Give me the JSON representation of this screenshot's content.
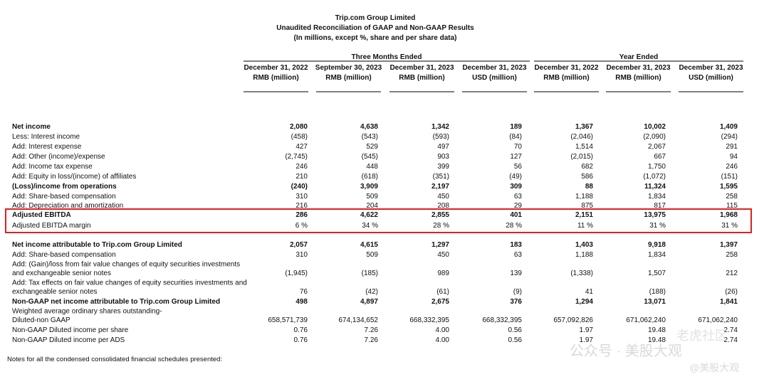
{
  "header": {
    "title": "Trip.com Group Limited",
    "subtitle": "Unaudited Reconciliation of  GAAP and Non-GAAP Results",
    "note": "(In millions, except %, share and per share data)"
  },
  "table": {
    "groups": [
      "Three Months Ended",
      "Year Ended"
    ],
    "columns": [
      [
        "December 31, 2022",
        "RMB (million)"
      ],
      [
        "September 30, 2023",
        "RMB (million)"
      ],
      [
        "December 31, 2023",
        "RMB (million)"
      ],
      [
        "December 31, 2023",
        "USD (million)"
      ],
      [
        "December 31, 2022",
        "RMB (million)"
      ],
      [
        "December 31, 2023",
        "RMB (million)"
      ],
      [
        "December 31, 2023",
        "USD (million)"
      ]
    ],
    "rows": [
      {
        "label": [
          "Net income"
        ],
        "bold": true,
        "values": [
          "2,080",
          "4,638",
          "1,342",
          "189",
          "1,367",
          "10,002",
          "1,409"
        ]
      },
      {
        "label": [
          "Less: Interest income"
        ],
        "bold": false,
        "values": [
          "(458)",
          "(543)",
          "(593)",
          "(84)",
          "(2,046)",
          "(2,090)",
          "(294)"
        ]
      },
      {
        "label": [
          "Add: Interest expense"
        ],
        "bold": false,
        "values": [
          "427",
          "529",
          "497",
          "70",
          "1,514",
          "2,067",
          "291"
        ]
      },
      {
        "label": [
          "Add: Other (income)/expense"
        ],
        "bold": false,
        "values": [
          "(2,745)",
          "(545)",
          "903",
          "127",
          "(2,015)",
          "667",
          "94"
        ]
      },
      {
        "label": [
          "Add: Income tax expense"
        ],
        "bold": false,
        "values": [
          "246",
          "448",
          "399",
          "56",
          "682",
          "1,750",
          "246"
        ]
      },
      {
        "label": [
          "Add: Equity in loss/(income) of affiliates"
        ],
        "bold": false,
        "values": [
          "210",
          "(618)",
          "(351)",
          "(49)",
          "586",
          "(1,072)",
          "(151)"
        ]
      },
      {
        "label": [
          "(Loss)/income from operations"
        ],
        "bold": true,
        "values": [
          "(240)",
          "3,909",
          "2,197",
          "309",
          "88",
          "11,324",
          "1,595"
        ]
      },
      {
        "label": [
          "Add: Share-based compensation"
        ],
        "bold": false,
        "values": [
          "310",
          "509",
          "450",
          "63",
          "1,188",
          "1,834",
          "258"
        ]
      },
      {
        "label": [
          "Add: Depreciation and amortization"
        ],
        "bold": false,
        "values": [
          "216",
          "204",
          "208",
          "29",
          "875",
          "817",
          "115"
        ]
      },
      {
        "label": [
          "Adjusted EBITDA"
        ],
        "bold": true,
        "values": [
          "286",
          "4,622",
          "2,855",
          "401",
          "2,151",
          "13,975",
          "1,968"
        ]
      },
      {
        "label": [
          "Adjusted EBITDA margin"
        ],
        "bold": false,
        "values": [
          "6 %",
          "34 %",
          "28 %",
          "28 %",
          "11 %",
          "31 %",
          "31 %"
        ]
      },
      {
        "label": [
          "Net income attributable to Trip.com Group Limited"
        ],
        "bold": true,
        "values": [
          "2,057",
          "4,615",
          "1,297",
          "183",
          "1,403",
          "9,918",
          "1,397"
        ]
      },
      {
        "label": [
          "Add: Share-based compensation"
        ],
        "bold": false,
        "values": [
          "310",
          "509",
          "450",
          "63",
          "1,188",
          "1,834",
          "258"
        ]
      },
      {
        "label": [
          "Add: (Gain)/loss from fair value changes of equity securities investments",
          "and exchangeable senior notes"
        ],
        "bold": false,
        "values": [
          "(1,945)",
          "(185)",
          "989",
          "139",
          "(1,338)",
          "1,507",
          "212"
        ]
      },
      {
        "label": [
          "Add: Tax effects on fair value changes of equity securities investments and",
          "exchangeable senior notes"
        ],
        "bold": false,
        "values": [
          "76",
          "(42)",
          "(61)",
          "(9)",
          "41",
          "(188)",
          "(26)"
        ]
      },
      {
        "label": [
          "Non-GAAP net income attributable to Trip.com Group Limited"
        ],
        "bold": true,
        "values": [
          "498",
          "4,897",
          "2,675",
          "376",
          "1,294",
          "13,071",
          "1,841"
        ]
      },
      {
        "label": [
          "Weighted average ordinary shares outstanding-",
          " Diluted-non GAAP"
        ],
        "bold": false,
        "values": [
          "658,571,739",
          "674,134,652",
          "668,332,395",
          "668,332,395",
          "657,092,826",
          "671,062,240",
          "671,062,240"
        ]
      },
      {
        "label": [
          "Non-GAAP Diluted income per share"
        ],
        "bold": false,
        "values": [
          "0.76",
          "7.26",
          "4.00",
          "0.56",
          "1.97",
          "19.48",
          "2.74"
        ]
      },
      {
        "label": [
          "Non-GAAP Diluted income per ADS"
        ],
        "bold": false,
        "values": [
          "0.76",
          "7.26",
          "4.00",
          "0.56",
          "1.97",
          "19.48",
          "2.74"
        ]
      }
    ]
  },
  "footer": {
    "note": "Notes for all the condensed consolidated financial schedules presented:"
  },
  "watermark": {
    "main": "公众号 · 美股大观",
    "top": "老虎社区",
    "bottom": "@美股大观"
  }
}
